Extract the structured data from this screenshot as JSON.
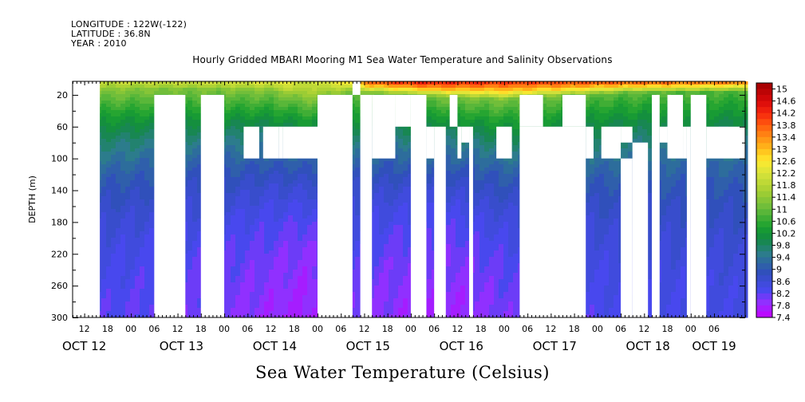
{
  "header": {
    "longitude": "LONGITUDE : 122W(-122)",
    "latitude": "LATITUDE : 36.8N",
    "year": "YEAR : 2010"
  },
  "chart_data": {
    "type": "heatmap",
    "title": "Hourly Gridded MBARI Mooring M1 Sea Water Temperature and Salinity Observations",
    "xlabel": "Sea Water Temperature (Celsius)",
    "ylabel": "DEPTH (m)",
    "x_unit": "hours since Oct 12 2010 00:00",
    "xlim": [
      9,
      182
    ],
    "ylim": [
      300,
      3
    ],
    "y_ticks": [
      20,
      60,
      100,
      140,
      180,
      220,
      260,
      300
    ],
    "hour_ticks": [
      {
        "h": 12,
        "label": "12"
      },
      {
        "h": 18,
        "label": "18"
      },
      {
        "h": 24,
        "label": "00"
      },
      {
        "h": 30,
        "label": "06"
      },
      {
        "h": 36,
        "label": "12"
      },
      {
        "h": 42,
        "label": "18"
      },
      {
        "h": 48,
        "label": "00"
      },
      {
        "h": 54,
        "label": "06"
      },
      {
        "h": 60,
        "label": "12"
      },
      {
        "h": 66,
        "label": "18"
      },
      {
        "h": 72,
        "label": "00"
      },
      {
        "h": 78,
        "label": "06"
      },
      {
        "h": 84,
        "label": "12"
      },
      {
        "h": 90,
        "label": "18"
      },
      {
        "h": 96,
        "label": "00"
      },
      {
        "h": 102,
        "label": "06"
      },
      {
        "h": 108,
        "label": "12"
      },
      {
        "h": 114,
        "label": "18"
      },
      {
        "h": 120,
        "label": "00"
      },
      {
        "h": 126,
        "label": "06"
      },
      {
        "h": 132,
        "label": "12"
      },
      {
        "h": 138,
        "label": "18"
      },
      {
        "h": 144,
        "label": "00"
      },
      {
        "h": 150,
        "label": "06"
      },
      {
        "h": 156,
        "label": "12"
      },
      {
        "h": 162,
        "label": "18"
      },
      {
        "h": 168,
        "label": "00"
      },
      {
        "h": 174,
        "label": "06"
      }
    ],
    "day_labels": [
      {
        "h": 12,
        "label": "OCT 12"
      },
      {
        "h": 37,
        "label": "OCT 13"
      },
      {
        "h": 61,
        "label": "OCT 14"
      },
      {
        "h": 85,
        "label": "OCT 15"
      },
      {
        "h": 109,
        "label": "OCT 16"
      },
      {
        "h": 133,
        "label": "OCT 17"
      },
      {
        "h": 157,
        "label": "OCT 18"
      },
      {
        "h": 174,
        "label": "OCT 19"
      }
    ],
    "colorbar": {
      "min": 7.4,
      "max": 15.2,
      "step": 0.2,
      "labels": [
        "15",
        "14.6",
        "14.2",
        "13.8",
        "13.4",
        "13",
        "12.6",
        "12.2",
        "11.8",
        "11.4",
        "11",
        "10.6",
        "10.2",
        "9.8",
        "9.4",
        "9",
        "8.6",
        "8.2",
        "7.8",
        "7.4"
      ],
      "stops": [
        {
          "v": 7.4,
          "c": "#c400ff"
        },
        {
          "v": 7.9,
          "c": "#9030ff"
        },
        {
          "v": 8.3,
          "c": "#4848ee"
        },
        {
          "v": 8.9,
          "c": "#3050bb"
        },
        {
          "v": 9.5,
          "c": "#2c7c8c"
        },
        {
          "v": 10.0,
          "c": "#138a43"
        },
        {
          "v": 10.4,
          "c": "#19a02f"
        },
        {
          "v": 11.0,
          "c": "#66bb3b"
        },
        {
          "v": 11.6,
          "c": "#a6cf33"
        },
        {
          "v": 12.2,
          "c": "#d8e33a"
        },
        {
          "v": 12.6,
          "c": "#ffe92f"
        },
        {
          "v": 13.0,
          "c": "#ffbb1a"
        },
        {
          "v": 13.4,
          "c": "#ff8c14"
        },
        {
          "v": 13.8,
          "c": "#ff5a0e"
        },
        {
          "v": 14.2,
          "c": "#f5260e"
        },
        {
          "v": 14.6,
          "c": "#d8080a"
        },
        {
          "v": 15.2,
          "c": "#a00000"
        }
      ]
    },
    "temperature_model": {
      "depth_decay_m": 95,
      "bottom_temp_by_hour": [
        {
          "h": 9,
          "t": 8.1
        },
        {
          "h": 16,
          "t": 8.1
        },
        {
          "h": 33,
          "t": 7.95
        },
        {
          "h": 48,
          "t": 7.85
        },
        {
          "h": 70,
          "t": 7.5
        },
        {
          "h": 80,
          "t": 7.9
        },
        {
          "h": 92,
          "t": 7.7
        },
        {
          "h": 108,
          "t": 7.6
        },
        {
          "h": 117,
          "t": 7.8
        },
        {
          "h": 130,
          "t": 8.0
        },
        {
          "h": 150,
          "t": 8.2
        },
        {
          "h": 182,
          "t": 8.3
        }
      ],
      "mid_temp_by_hour": [
        {
          "h": 9,
          "t": 10.8
        },
        {
          "h": 40,
          "t": 10.6
        },
        {
          "h": 60,
          "t": 10.7
        },
        {
          "h": 90,
          "t": 10.5
        },
        {
          "h": 120,
          "t": 10.6
        },
        {
          "h": 150,
          "t": 10.3
        },
        {
          "h": 182,
          "t": 10.2
        }
      ],
      "surface_temp_by_hour": [
        {
          "h": 9,
          "t": 12.1
        },
        {
          "h": 30,
          "t": 12.2
        },
        {
          "h": 52,
          "t": 12.4
        },
        {
          "h": 64,
          "t": 12.5
        },
        {
          "h": 70,
          "t": 12.0
        },
        {
          "h": 80,
          "t": 12.8
        },
        {
          "h": 86,
          "t": 14.3
        },
        {
          "h": 100,
          "t": 14.7
        },
        {
          "h": 120,
          "t": 14.4
        },
        {
          "h": 150,
          "t": 14.3
        },
        {
          "h": 182,
          "t": 14.0
        }
      ],
      "surface_layer_depth_by_hour": [
        {
          "h": 9,
          "t": 12
        },
        {
          "h": 60,
          "t": 14
        },
        {
          "h": 70,
          "t": 26
        },
        {
          "h": 80,
          "t": 16
        },
        {
          "h": 100,
          "t": 22
        },
        {
          "h": 120,
          "t": 26
        },
        {
          "h": 150,
          "t": 18
        },
        {
          "h": 182,
          "t": 16
        }
      ]
    },
    "missing_regions": [
      {
        "h0": 9,
        "h1": 16,
        "d0": 3,
        "d1": 300
      },
      {
        "h0": 30,
        "h1": 38,
        "d0": 20,
        "d1": 300
      },
      {
        "h0": 42,
        "h1": 48,
        "d0": 20,
        "d1": 300
      },
      {
        "h0": 72,
        "h1": 81,
        "d0": 20,
        "d1": 300
      },
      {
        "h0": 81,
        "h1": 83,
        "d0": 3,
        "d1": 20
      },
      {
        "h0": 83,
        "h1": 86,
        "d0": 20,
        "d1": 300
      },
      {
        "h0": 86,
        "h1": 92,
        "d0": 20,
        "d1": 100
      },
      {
        "h0": 92,
        "h1": 96,
        "d0": 20,
        "d1": 60
      },
      {
        "h0": 96,
        "h1": 100,
        "d0": 20,
        "d1": 300
      },
      {
        "h0": 100,
        "h1": 102,
        "d0": 60,
        "d1": 100
      },
      {
        "h0": 102,
        "h1": 105,
        "d0": 60,
        "d1": 300
      },
      {
        "h0": 106,
        "h1": 108,
        "d0": 20,
        "d1": 60
      },
      {
        "h0": 108,
        "h1": 109,
        "d0": 60,
        "d1": 100
      },
      {
        "h0": 109,
        "h1": 111,
        "d0": 60,
        "d1": 80
      },
      {
        "h0": 111,
        "h1": 112,
        "d0": 60,
        "d1": 300
      },
      {
        "h0": 118,
        "h1": 122,
        "d0": 60,
        "d1": 100
      },
      {
        "h0": 124,
        "h1": 130,
        "d0": 20,
        "d1": 60
      },
      {
        "h0": 124,
        "h1": 141,
        "d0": 60,
        "d1": 300
      },
      {
        "h0": 135,
        "h1": 141,
        "d0": 20,
        "d1": 60
      },
      {
        "h0": 141,
        "h1": 143,
        "d0": 60,
        "d1": 100
      },
      {
        "h0": 145,
        "h1": 150,
        "d0": 60,
        "d1": 100
      },
      {
        "h0": 150,
        "h1": 153,
        "d0": 60,
        "d1": 80
      },
      {
        "h0": 153,
        "h1": 157,
        "d0": 80,
        "d1": 300
      },
      {
        "h0": 150,
        "h1": 153,
        "d0": 100,
        "d1": 300
      },
      {
        "h0": 158,
        "h1": 160,
        "d0": 20,
        "d1": 300
      },
      {
        "h0": 160,
        "h1": 162,
        "d0": 60,
        "d1": 80
      },
      {
        "h0": 162,
        "h1": 166,
        "d0": 20,
        "d1": 100
      },
      {
        "h0": 166,
        "h1": 167,
        "d0": 60,
        "d1": 100
      },
      {
        "h0": 167,
        "h1": 168,
        "d0": 60,
        "d1": 300
      },
      {
        "h0": 168,
        "h1": 172,
        "d0": 20,
        "d1": 300
      },
      {
        "h0": 172,
        "h1": 182,
        "d0": 60,
        "d1": 100
      },
      {
        "h0": 62,
        "h1": 63,
        "d0": 60,
        "d1": 100
      },
      {
        "h0": 53,
        "h1": 57,
        "d0": 60,
        "d1": 100
      },
      {
        "h0": 58,
        "h1": 62,
        "d0": 60,
        "d1": 100
      },
      {
        "h0": 63,
        "h1": 76,
        "d0": 60,
        "d1": 100
      }
    ]
  }
}
